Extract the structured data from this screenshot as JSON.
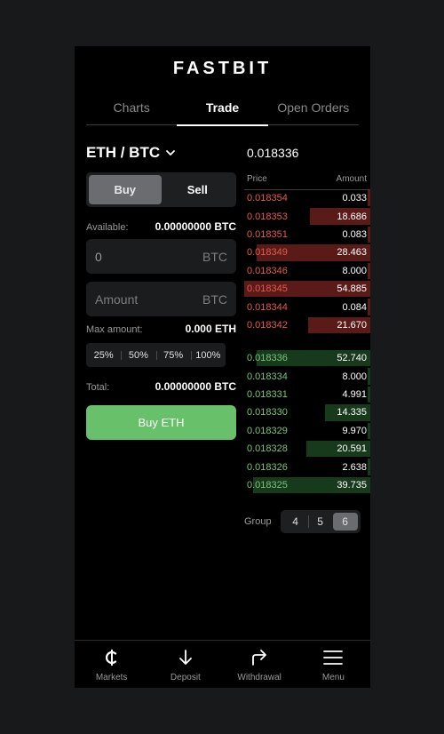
{
  "brand": "FASTBIT",
  "tabs": [
    {
      "label": "Charts",
      "active": false
    },
    {
      "label": "Trade",
      "active": true
    },
    {
      "label": "Open Orders",
      "active": false
    }
  ],
  "trade": {
    "pair": "ETH / BTC",
    "side_buy": "Buy",
    "side_sell": "Sell",
    "available_label": "Available:",
    "available_value": "0.00000000 BTC",
    "price_value": "0",
    "price_unit": "BTC",
    "amount_placeholder": "Amount",
    "amount_unit": "BTC",
    "max_label": "Max amount:",
    "max_value": "0.000 ETH",
    "percents": [
      "25%",
      "50%",
      "75%",
      "100%"
    ],
    "total_label": "Total:",
    "total_value": "0.00000000 BTC",
    "submit_label": "Buy ETH"
  },
  "orderbook": {
    "last_price": "0.018336",
    "price_header": "Price",
    "amount_header": "Amount",
    "asks": [
      {
        "price": "0.018354",
        "amount": "0.033",
        "depth": 0.02
      },
      {
        "price": "0.018353",
        "amount": "18.686",
        "depth": 0.48
      },
      {
        "price": "0.018351",
        "amount": "0.083",
        "depth": 0.02
      },
      {
        "price": "0.018349",
        "amount": "28.463",
        "depth": 0.9
      },
      {
        "price": "0.018346",
        "amount": "8.000",
        "depth": 0.02
      },
      {
        "price": "0.018345",
        "amount": "54.885",
        "depth": 1.0
      },
      {
        "price": "0.018344",
        "amount": "0.084",
        "depth": 0.02
      },
      {
        "price": "0.018342",
        "amount": "21.670",
        "depth": 0.49
      }
    ],
    "bids": [
      {
        "price": "0.018336",
        "amount": "52.740",
        "depth": 0.9
      },
      {
        "price": "0.018334",
        "amount": "8.000",
        "depth": 0.02
      },
      {
        "price": "0.018331",
        "amount": "4.991",
        "depth": 0.02
      },
      {
        "price": "0.018330",
        "amount": "14.335",
        "depth": 0.36
      },
      {
        "price": "0.018329",
        "amount": "9.970",
        "depth": 0.02
      },
      {
        "price": "0.018328",
        "amount": "20.591",
        "depth": 0.51
      },
      {
        "price": "0.018326",
        "amount": "2.638",
        "depth": 0.02
      },
      {
        "price": "0.018325",
        "amount": "39.735",
        "depth": 0.93
      }
    ],
    "group_label": "Group",
    "group_options": [
      "4",
      "5",
      "6"
    ],
    "group_selected": "6"
  },
  "bottom_nav": [
    {
      "label": "Markets",
      "icon": "cedi-icon"
    },
    {
      "label": "Deposit",
      "icon": "arrow-down-icon"
    },
    {
      "label": "Withdrawal",
      "icon": "forward-arrow-icon"
    },
    {
      "label": "Menu",
      "icon": "hamburger-icon"
    }
  ],
  "colors": {
    "ask": "#e65a52",
    "bid": "#7cc47a",
    "buy_button": "#68c06b"
  }
}
